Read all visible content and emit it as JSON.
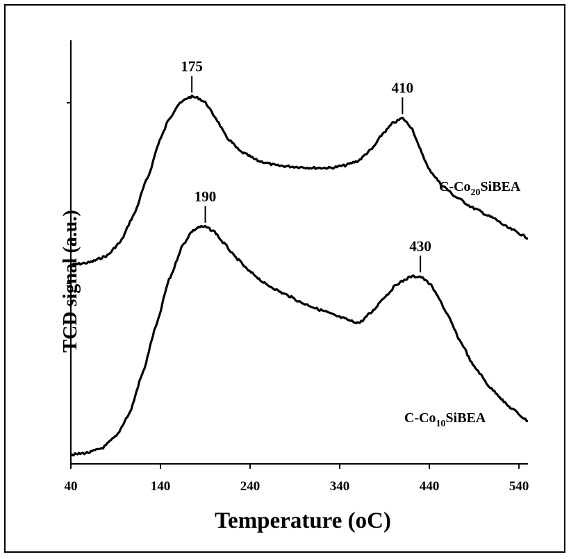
{
  "chart_data": {
    "type": "line",
    "xlabel": "Temperature (oC)",
    "ylabel": "TCD signal (a.u.)",
    "xlim": [
      40,
      550
    ],
    "xticks": [
      "40",
      "140",
      "240",
      "340",
      "440",
      "540"
    ],
    "y_ticks_labeled": false,
    "grid": false,
    "legend": "none",
    "series": [
      {
        "name": "C-Co20SiBEA",
        "label_main": "C-Co",
        "label_sub": "20",
        "label_tail": "SiBEA",
        "offset": 1.0,
        "x": [
          40,
          60,
          80,
          95,
          110,
          125,
          140,
          150,
          160,
          170,
          175,
          182,
          190,
          200,
          215,
          230,
          250,
          270,
          290,
          310,
          330,
          345,
          360,
          375,
          390,
          400,
          410,
          420,
          430,
          440,
          455,
          470,
          490,
          510,
          530,
          550
        ],
        "y": [
          0.02,
          0.03,
          0.06,
          0.12,
          0.24,
          0.4,
          0.58,
          0.67,
          0.73,
          0.76,
          0.765,
          0.76,
          0.74,
          0.68,
          0.58,
          0.52,
          0.48,
          0.46,
          0.455,
          0.45,
          0.45,
          0.46,
          0.48,
          0.53,
          0.61,
          0.65,
          0.67,
          0.63,
          0.53,
          0.44,
          0.37,
          0.32,
          0.27,
          0.23,
          0.18,
          0.14
        ],
        "peaks": [
          175,
          410
        ]
      },
      {
        "name": "C-Co10SiBEA",
        "label_main": "C-Co",
        "label_sub": "10",
        "label_tail": "SiBEA",
        "offset": 0.0,
        "x": [
          40,
          60,
          75,
          90,
          105,
          120,
          135,
          150,
          165,
          175,
          183,
          190,
          200,
          210,
          225,
          240,
          260,
          280,
          300,
          320,
          340,
          355,
          362,
          375,
          390,
          405,
          420,
          430,
          440,
          450,
          460,
          475,
          490,
          510,
          530,
          550
        ],
        "y": [
          0.0,
          0.01,
          0.03,
          0.08,
          0.18,
          0.36,
          0.57,
          0.78,
          0.93,
          0.99,
          1.01,
          1.01,
          0.99,
          0.94,
          0.87,
          0.81,
          0.75,
          0.71,
          0.67,
          0.64,
          0.61,
          0.59,
          0.585,
          0.63,
          0.7,
          0.76,
          0.79,
          0.79,
          0.76,
          0.7,
          0.62,
          0.5,
          0.39,
          0.29,
          0.21,
          0.15
        ],
        "peaks": [
          190,
          430
        ]
      }
    ],
    "peak_annotations": [
      {
        "series": 0,
        "x": 175,
        "label": "175"
      },
      {
        "series": 0,
        "x": 410,
        "label": "410"
      },
      {
        "series": 1,
        "x": 190,
        "label": "190"
      },
      {
        "series": 1,
        "x": 430,
        "label": "430"
      }
    ]
  }
}
